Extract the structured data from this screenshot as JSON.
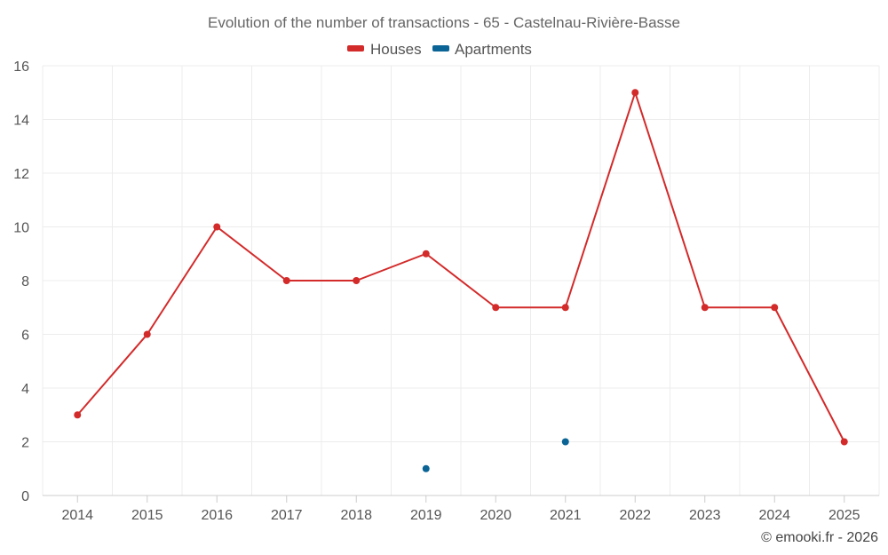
{
  "chart_data": {
    "type": "line",
    "title": "Evolution of the number of transactions - 65 - Castelnau-Rivière-Basse",
    "categories": [
      "2014",
      "2015",
      "2016",
      "2017",
      "2018",
      "2019",
      "2020",
      "2021",
      "2022",
      "2023",
      "2024",
      "2025"
    ],
    "series": [
      {
        "name": "Houses",
        "color": "#d32a2a",
        "values": [
          3,
          6,
          10,
          8,
          8,
          9,
          7,
          7,
          15,
          7,
          7,
          2
        ]
      },
      {
        "name": "Apartments",
        "color": "#0b6496",
        "values": [
          null,
          null,
          null,
          null,
          null,
          1,
          null,
          2,
          null,
          null,
          null,
          null
        ]
      }
    ],
    "ylim": [
      0,
      16
    ],
    "yticks": [
      0,
      2,
      4,
      6,
      8,
      10,
      12,
      14,
      16
    ],
    "grid": true,
    "legend": "top-center",
    "xlabel": "",
    "ylabel": ""
  },
  "credit": "© emooki.fr - 2026"
}
